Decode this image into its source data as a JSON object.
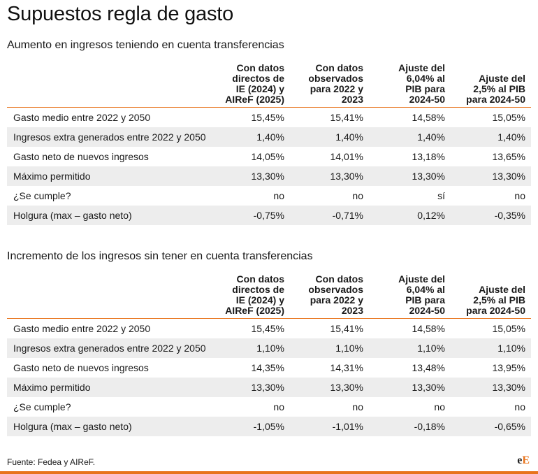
{
  "title": "Supuestos regla de gasto",
  "brand_color": "#e8731b",
  "header": {
    "col1": [
      "Con datos",
      "directos de",
      "IE (2024) y",
      "AIReF (2025)"
    ],
    "col2": [
      "Con datos",
      "observados",
      "para 2022 y",
      "2023"
    ],
    "col3": [
      "Ajuste del",
      "6,04% al",
      "PIB para",
      "2024-50"
    ],
    "col4": [
      "Ajuste del",
      "2,5% al PIB",
      "para 2024-50"
    ]
  },
  "sections": [
    {
      "subtitle": "Aumento en ingresos teniendo en cuenta transferencias",
      "rows": [
        {
          "label": "Gasto medio entre 2022 y 2050",
          "v": [
            "15,45%",
            "15,41%",
            "14,58%",
            "15,05%"
          ]
        },
        {
          "label": "Ingresos extra generados entre 2022 y 2050",
          "v": [
            "1,40%",
            "1,40%",
            "1,40%",
            "1,40%"
          ]
        },
        {
          "label": "Gasto neto de nuevos ingresos",
          "v": [
            "14,05%",
            "14,01%",
            "13,18%",
            "13,65%"
          ]
        },
        {
          "label": "Máximo permitido",
          "v": [
            "13,30%",
            "13,30%",
            "13,30%",
            "13,30%"
          ]
        },
        {
          "label": "¿Se cumple?",
          "v": [
            "no",
            "no",
            "sí",
            "no"
          ]
        },
        {
          "label": "Holgura (max – gasto neto)",
          "v": [
            "-0,75%",
            "-0,71%",
            "0,12%",
            "-0,35%"
          ]
        }
      ]
    },
    {
      "subtitle": "Incremento de los ingresos sin tener en cuenta transferencias",
      "rows": [
        {
          "label": "Gasto medio entre 2022 y 2050",
          "v": [
            "15,45%",
            "15,41%",
            "14,58%",
            "15,05%"
          ]
        },
        {
          "label": "Ingresos extra generados entre 2022 y 2050",
          "v": [
            "1,10%",
            "1,10%",
            "1,10%",
            "1,10%"
          ]
        },
        {
          "label": "Gasto neto de nuevos ingresos",
          "v": [
            "14,35%",
            "14,31%",
            "13,48%",
            "13,95%"
          ]
        },
        {
          "label": "Máximo permitido",
          "v": [
            "13,30%",
            "13,30%",
            "13,30%",
            "13,30%"
          ]
        },
        {
          "label": "¿Se cumple?",
          "v": [
            "no",
            "no",
            "no",
            "no"
          ]
        },
        {
          "label": "Holgura (max – gasto neto)",
          "v": [
            "-1,05%",
            "-1,01%",
            "-0,18%",
            "-0,65%"
          ]
        }
      ]
    }
  ],
  "source": "Fuente: Fedea y AIReF.",
  "logo": {
    "part1": "e",
    "part2": "E"
  }
}
